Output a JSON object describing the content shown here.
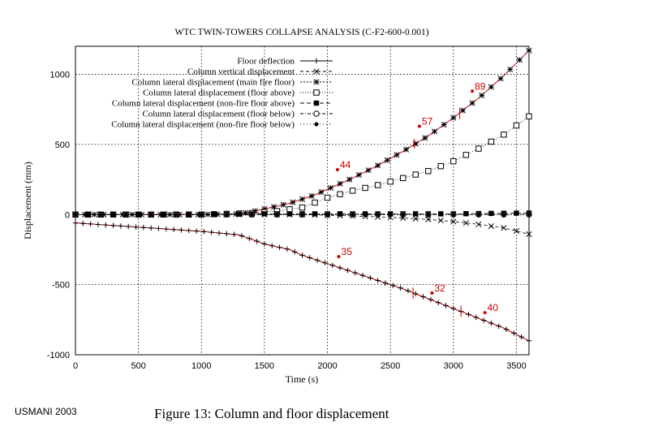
{
  "credit": "USMANI 2003",
  "caption": "Figure 13: Column and floor displacement",
  "chart_data": {
    "type": "line",
    "title": "WTC TWIN-TOWERS COLLAPSE ANALYSIS (C-F2-600-0.001)",
    "xlabel": "Time (s)",
    "ylabel": "Displacement (mm)",
    "xlim": [
      0,
      3600
    ],
    "ylim": [
      -1000,
      1200
    ],
    "xticks": [
      0,
      500,
      1000,
      1500,
      2000,
      2500,
      3000,
      3500
    ],
    "yticks": [
      -1000,
      -500,
      0,
      500,
      1000
    ],
    "grid": true,
    "legend_position": "top-left",
    "series": [
      {
        "name": "Floor deflection",
        "marker": "+",
        "x": [
          0,
          500,
          1000,
          1300,
          1500,
          1700,
          1800,
          2000,
          2200,
          2400,
          2600,
          2800,
          3000,
          3200,
          3400,
          3600
        ],
        "y": [
          -60,
          -90,
          -120,
          -145,
          -210,
          -250,
          -290,
          -350,
          -410,
          -470,
          -530,
          -600,
          -670,
          -740,
          -810,
          -900
        ]
      },
      {
        "name": "Column vertical displacement",
        "marker": "x",
        "x": [
          0,
          500,
          1000,
          1500,
          1800,
          2000,
          2200,
          2500,
          2800,
          3000,
          3200,
          3400,
          3600
        ],
        "y": [
          0,
          0,
          0,
          0,
          0,
          -5,
          -10,
          -20,
          -35,
          -50,
          -70,
          -95,
          -140
        ]
      },
      {
        "name": "Column lateral displacement (main fire floor)",
        "marker": "*",
        "x": [
          0,
          500,
          1000,
          1300,
          1400,
          1500,
          1600,
          1700,
          1800,
          1900,
          2000,
          2200,
          2400,
          2600,
          2800,
          3000,
          3200,
          3400,
          3600
        ],
        "y": [
          0,
          0,
          0,
          5,
          20,
          40,
          60,
          80,
          110,
          140,
          180,
          260,
          350,
          450,
          560,
          690,
          830,
          990,
          1170
        ]
      },
      {
        "name": "Column lateral displacement (floor above)",
        "marker": "square-open",
        "x": [
          0,
          500,
          1000,
          1400,
          1600,
          1800,
          2000,
          2200,
          2400,
          2600,
          2800,
          3000,
          3200,
          3400,
          3600
        ],
        "y": [
          0,
          0,
          0,
          10,
          25,
          50,
          120,
          170,
          210,
          260,
          310,
          380,
          470,
          570,
          700
        ]
      },
      {
        "name": "Column lateral displacement (non-fire floor above)",
        "marker": "square-filled",
        "x": [
          0,
          500,
          1000,
          1500,
          2000,
          2500,
          3000,
          3500,
          3600
        ],
        "y": [
          0,
          0,
          0,
          5,
          5,
          5,
          5,
          10,
          10
        ]
      },
      {
        "name": "Column lateral displacement (floor below)",
        "marker": "circle-open",
        "x": [
          0,
          1000,
          2000,
          3000,
          3600
        ],
        "y": [
          0,
          0,
          0,
          0,
          0
        ]
      },
      {
        "name": "Column lateral displacement (non-fire floor below)",
        "marker": "circle-filled",
        "x": [
          0,
          1000,
          2000,
          3000,
          3600
        ],
        "y": [
          0,
          0,
          0,
          0,
          0
        ]
      }
    ],
    "annotations": [
      {
        "text": "89",
        "x": 3150,
        "y": 880
      },
      {
        "text": "57",
        "x": 2730,
        "y": 630
      },
      {
        "text": "44",
        "x": 2080,
        "y": 320
      },
      {
        "text": "35",
        "x": 2090,
        "y": -300
      },
      {
        "text": "32",
        "x": 2830,
        "y": -560
      },
      {
        "text": "40",
        "x": 3250,
        "y": -700
      }
    ],
    "colors": {
      "annotation": "#cc0000",
      "line": "#000000"
    }
  }
}
